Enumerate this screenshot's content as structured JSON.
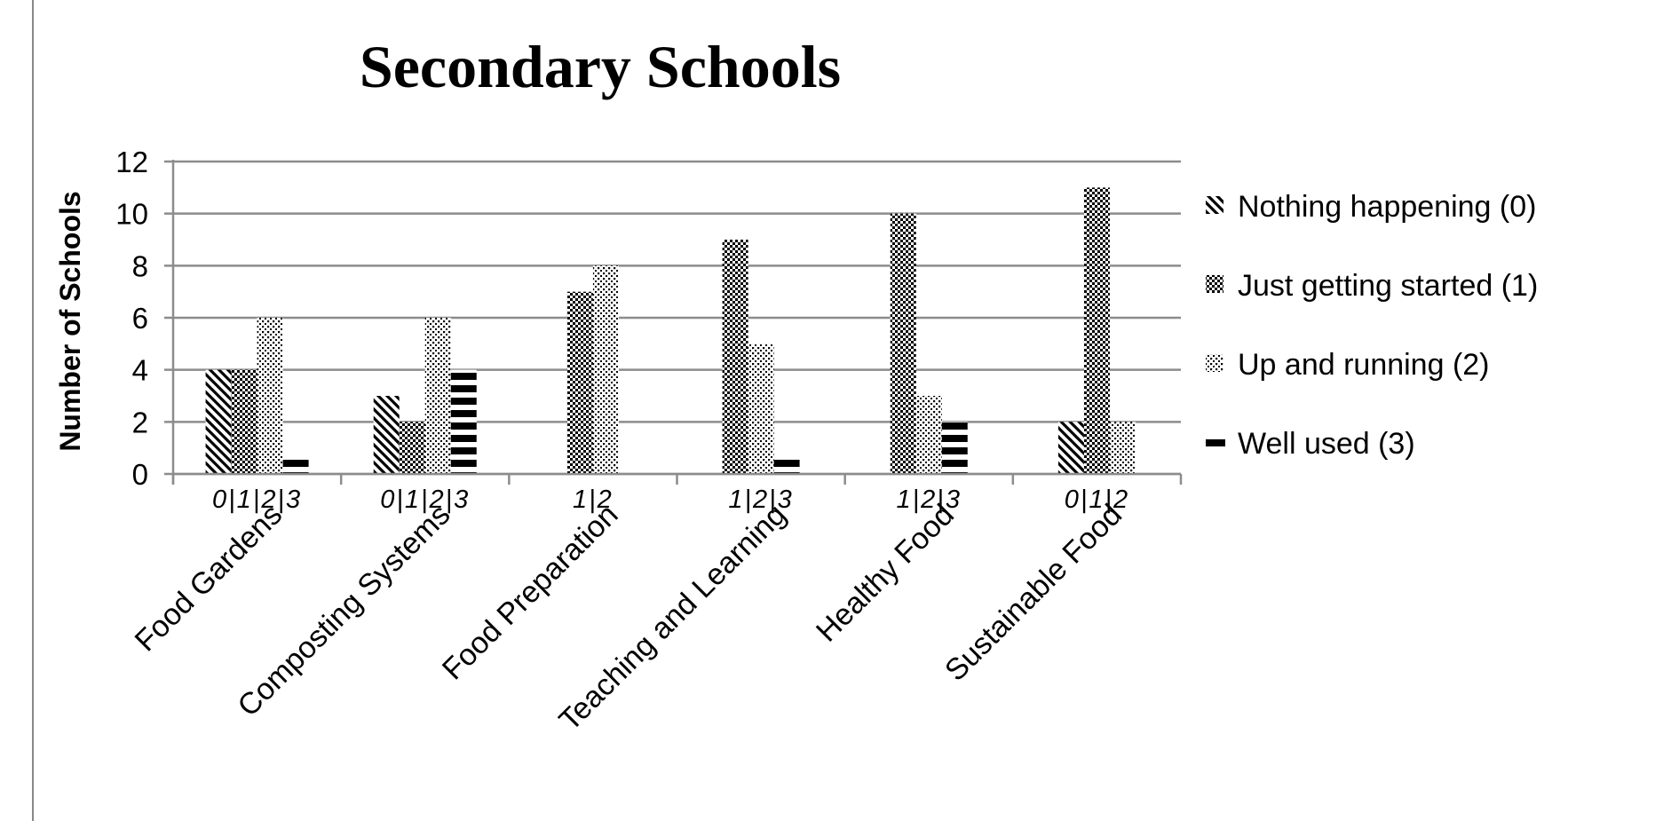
{
  "chart_data": {
    "type": "bar",
    "title": "Secondary Schools",
    "xlabel": "",
    "ylabel": "Number of Schools",
    "ylim": [
      0,
      12
    ],
    "yticks": [
      0,
      2,
      4,
      6,
      8,
      10,
      12
    ],
    "grid": true,
    "legend_position": "right",
    "categories": [
      {
        "name": "Food Gardens",
        "sub_label": "0|1|2|3",
        "bars": [
          {
            "series": 0,
            "value": 4
          },
          {
            "series": 1,
            "value": 4
          },
          {
            "series": 2,
            "value": 6
          },
          {
            "series": 3,
            "value": 0.7
          }
        ]
      },
      {
        "name": "Composting Systems",
        "sub_label": "0|1|2|3",
        "bars": [
          {
            "series": 0,
            "value": 3
          },
          {
            "series": 1,
            "value": 2
          },
          {
            "series": 2,
            "value": 6
          },
          {
            "series": 3,
            "value": 4
          }
        ]
      },
      {
        "name": "Food Preparation",
        "sub_label": "1|2",
        "bars": [
          {
            "series": 1,
            "value": 7
          },
          {
            "series": 2,
            "value": 8
          }
        ]
      },
      {
        "name": "Teaching and Learning",
        "sub_label": "1|2|3",
        "bars": [
          {
            "series": 1,
            "value": 9
          },
          {
            "series": 2,
            "value": 5
          },
          {
            "series": 3,
            "value": 0.7
          }
        ]
      },
      {
        "name": "Healthy Food",
        "sub_label": "1|2|3",
        "bars": [
          {
            "series": 1,
            "value": 10
          },
          {
            "series": 2,
            "value": 3
          },
          {
            "series": 3,
            "value": 2
          }
        ]
      },
      {
        "name": "Sustainable Food",
        "sub_label": "0|1|2",
        "bars": [
          {
            "series": 0,
            "value": 2
          },
          {
            "series": 1,
            "value": 11
          },
          {
            "series": 2,
            "value": 2
          }
        ]
      }
    ],
    "series": [
      {
        "name": "Nothing happening (0)",
        "pattern": "diagonal-stripes"
      },
      {
        "name": "Just getting started (1)",
        "pattern": "checkerboard"
      },
      {
        "name": "Up and running (2)",
        "pattern": "dots"
      },
      {
        "name": "Well used (3)",
        "pattern": "horizontal-bars"
      }
    ],
    "colors": {
      "ink": "#000000",
      "grid": "#8c8c8c",
      "background": "#ffffff"
    }
  }
}
